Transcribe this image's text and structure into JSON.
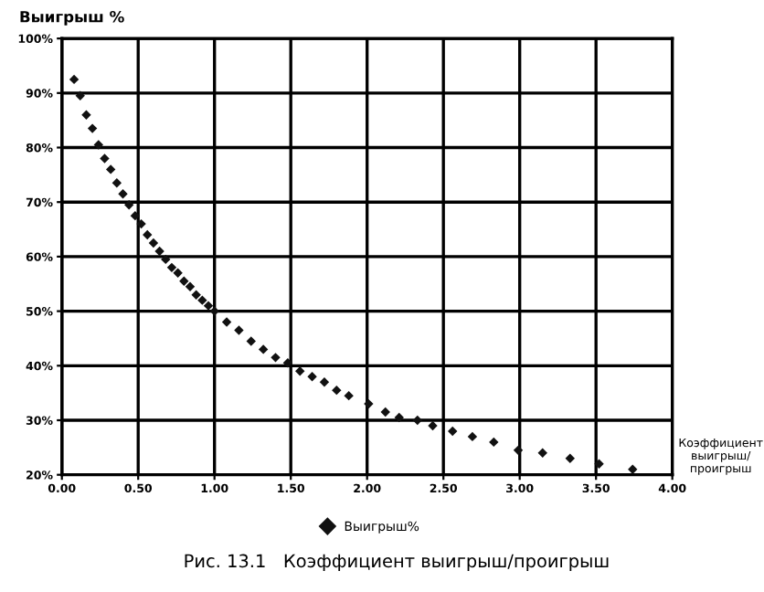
{
  "chart_data": {
    "type": "scatter",
    "ylabel": "Выигрыш %",
    "xlabel": "Коэффициент\nвыигрыш/\nпроигрыш",
    "annotations": [
      "Рис. 13.1   Коэффициент выигрыш/проигрыш"
    ],
    "x": [
      0.08,
      0.12,
      0.16,
      0.2,
      0.24,
      0.28,
      0.32,
      0.36,
      0.4,
      0.44,
      0.48,
      0.52,
      0.56,
      0.6,
      0.64,
      0.68,
      0.72,
      0.76,
      0.8,
      0.84,
      0.88,
      0.92,
      0.96,
      1.0,
      1.08,
      1.16,
      1.24,
      1.32,
      1.4,
      1.48,
      1.56,
      1.64,
      1.72,
      1.8,
      1.88,
      2.01,
      2.12,
      2.21,
      2.33,
      2.43,
      2.56,
      2.69,
      2.83,
      2.99,
      3.15,
      3.33,
      3.52,
      3.74
    ],
    "series": [
      {
        "name": "Выигрыш%",
        "color": "#111111",
        "values": [
          92.5,
          89.5,
          86,
          83.5,
          80.5,
          78,
          76,
          73.5,
          71.5,
          69.5,
          67.5,
          66,
          64,
          62.5,
          61,
          59.5,
          58,
          57,
          55.5,
          54.5,
          53,
          52,
          51,
          50,
          48,
          46.5,
          44.5,
          43,
          41.5,
          40.5,
          39,
          38,
          37,
          35.5,
          34.5,
          33,
          31.5,
          30.5,
          30,
          29,
          28,
          27,
          26,
          24.5,
          24,
          23,
          22,
          21
        ]
      }
    ],
    "xlim": [
      0,
      4
    ],
    "ylim": [
      20,
      100
    ],
    "xticks": [
      {
        "value": 0,
        "label": "0.00"
      },
      {
        "value": 0.5,
        "label": "0.50"
      },
      {
        "value": 1,
        "label": "1.00"
      },
      {
        "value": 1.5,
        "label": "1.50"
      },
      {
        "value": 2,
        "label": "2.00"
      },
      {
        "value": 2.5,
        "label": "2.50"
      },
      {
        "value": 3,
        "label": "3.00"
      },
      {
        "value": 3.5,
        "label": "3.50"
      },
      {
        "value": 4,
        "label": "4.00"
      }
    ],
    "yticks": [
      {
        "value": 20,
        "label": "20%"
      },
      {
        "value": 30,
        "label": "30%"
      },
      {
        "value": 40,
        "label": "40%"
      },
      {
        "value": 50,
        "label": "50%"
      },
      {
        "value": 60,
        "label": "60%"
      },
      {
        "value": 70,
        "label": "70%"
      },
      {
        "value": 80,
        "label": "80%"
      },
      {
        "value": 90,
        "label": "90%"
      },
      {
        "value": 100,
        "label": "100%"
      }
    ],
    "grid": true,
    "legend": "bottom",
    "marker": "diamond"
  }
}
